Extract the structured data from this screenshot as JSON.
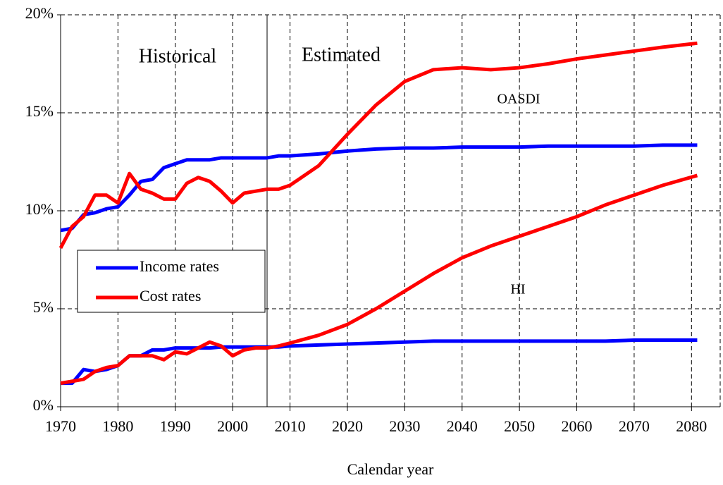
{
  "chart_data": {
    "type": "line",
    "x_label": "Calendar year",
    "annotations": [
      "Historical",
      "Estimated",
      "OASDI",
      "HI"
    ],
    "divider": 2006,
    "x": [
      1970,
      1972,
      1974,
      1976,
      1978,
      1980,
      1982,
      1984,
      1986,
      1988,
      1990,
      1992,
      1994,
      1996,
      1998,
      2000,
      2002,
      2004,
      2006,
      2008,
      2010,
      2015,
      2020,
      2025,
      2030,
      2035,
      2040,
      2045,
      2050,
      2055,
      2060,
      2065,
      2070,
      2075,
      2081
    ],
    "series": [
      {
        "name": "Income rates",
        "color": "#0000ff",
        "oasdi": [
          9.0,
          9.1,
          9.8,
          9.9,
          10.1,
          10.2,
          10.8,
          11.5,
          11.6,
          12.2,
          12.4,
          12.6,
          12.6,
          12.6,
          12.7,
          12.7,
          12.7,
          12.7,
          12.7,
          12.8,
          12.8,
          12.9,
          13.05,
          13.15,
          13.2,
          13.2,
          13.25,
          13.25,
          13.25,
          13.3,
          13.3,
          13.3,
          13.3,
          13.35,
          13.35
        ],
        "hi": [
          1.2,
          1.2,
          1.9,
          1.8,
          1.9,
          2.1,
          2.6,
          2.6,
          2.9,
          2.9,
          3.0,
          3.0,
          3.0,
          3.0,
          3.05,
          3.05,
          3.05,
          3.05,
          3.05,
          3.05,
          3.1,
          3.15,
          3.2,
          3.25,
          3.3,
          3.35,
          3.35,
          3.35,
          3.35,
          3.35,
          3.35,
          3.35,
          3.4,
          3.4,
          3.4
        ]
      },
      {
        "name": "Cost rates",
        "color": "#ff0000",
        "oasdi": [
          8.1,
          9.2,
          9.7,
          10.8,
          10.8,
          10.4,
          11.9,
          11.1,
          10.9,
          10.6,
          10.6,
          11.4,
          11.7,
          11.5,
          11.0,
          10.4,
          10.9,
          11.0,
          11.1,
          11.1,
          11.3,
          12.3,
          13.9,
          15.4,
          16.6,
          17.2,
          17.3,
          17.2,
          17.3,
          17.5,
          17.75,
          17.95,
          18.15,
          18.35,
          18.55
        ],
        "hi": [
          1.2,
          1.3,
          1.4,
          1.8,
          2.0,
          2.1,
          2.6,
          2.6,
          2.6,
          2.4,
          2.8,
          2.7,
          3.0,
          3.3,
          3.1,
          2.6,
          2.9,
          3.0,
          3.0,
          3.1,
          3.25,
          3.65,
          4.2,
          5.0,
          5.9,
          6.8,
          7.6,
          8.2,
          8.7,
          9.2,
          9.7,
          10.3,
          10.8,
          11.3,
          11.8
        ]
      }
    ],
    "xlim": [
      1970,
      2085
    ],
    "xticks": [
      1970,
      1980,
      1990,
      2000,
      2010,
      2020,
      2030,
      2040,
      2050,
      2060,
      2070,
      2080
    ],
    "ylim": [
      0,
      20
    ],
    "yticks": [
      {
        "value": 0,
        "label": "0%"
      },
      {
        "value": 5,
        "label": "5%"
      },
      {
        "value": 10,
        "label": "10%"
      },
      {
        "value": 15,
        "label": "15%"
      },
      {
        "value": 20,
        "label": "20%"
      }
    ],
    "grid": true
  }
}
